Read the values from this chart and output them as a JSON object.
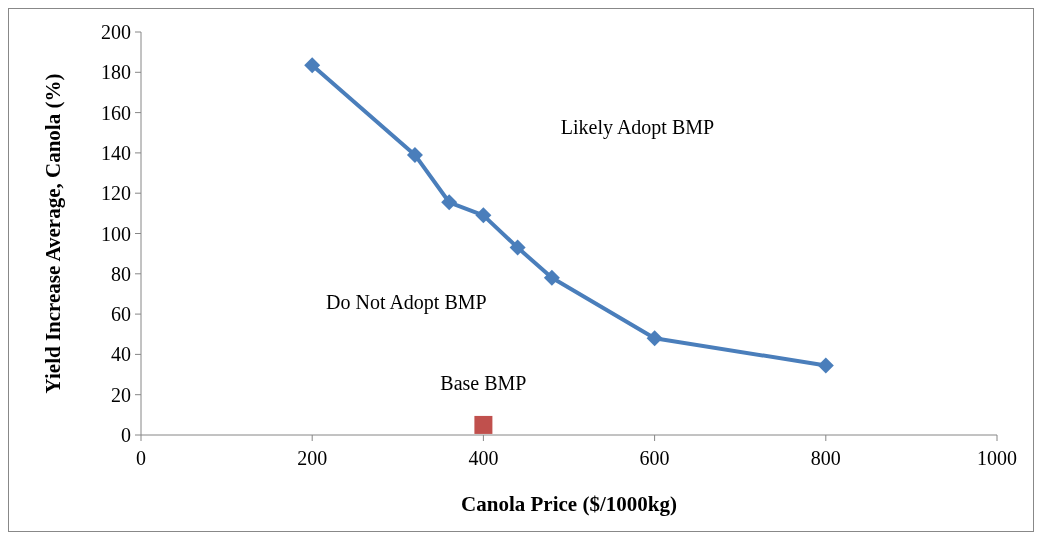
{
  "chart_data": {
    "type": "line",
    "xlabel": "Canola Price ($/1000kg)",
    "ylabel": "Yield Increase Average, Canola (%)",
    "xlim": [
      0,
      1000
    ],
    "xticks": [
      0,
      200,
      400,
      600,
      800,
      1000
    ],
    "ylim": [
      0,
      200
    ],
    "yticks": [
      0,
      20,
      40,
      60,
      80,
      100,
      120,
      140,
      160,
      180,
      200
    ],
    "series": [
      {
        "color": "#4a7ebb",
        "marker": "diamond",
        "x": [
          200,
          320,
          360,
          400,
          440,
          480,
          600,
          800
        ],
        "values": [
          183.5,
          139,
          115.5,
          109,
          93,
          78,
          48,
          34.5
        ]
      },
      {
        "type": "scatter",
        "color": "#c0504d",
        "marker": "square",
        "x": [
          400
        ],
        "values": [
          5
        ]
      }
    ],
    "annotations": [
      "Likely Adopt BMP",
      "Do Not Adopt BMP",
      {
        "text": "Base BMP",
        "x": 400,
        "y": 5
      }
    ]
  }
}
